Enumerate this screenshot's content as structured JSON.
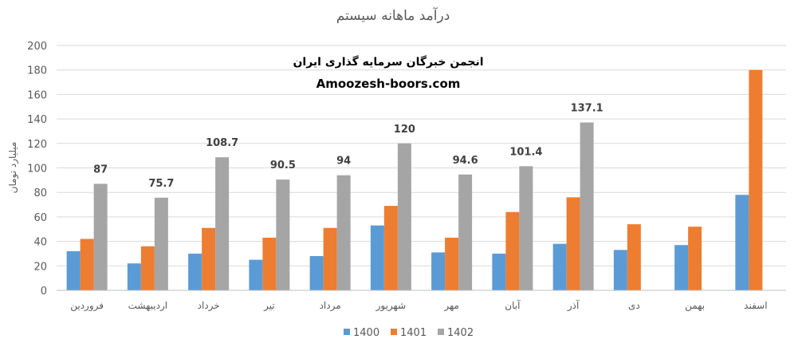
{
  "chart_data": {
    "type": "bar",
    "title": "درآمد ماهانه سیستم",
    "ylabel": "میلیارد تومان",
    "xlabel": "",
    "ylim": [
      0,
      200
    ],
    "ytick_step": 20,
    "yticks": [
      "0",
      "20",
      "40",
      "60",
      "80",
      "100",
      "120",
      "140",
      "160",
      "180",
      "200"
    ],
    "grid": true,
    "legend_position": "bottom",
    "categories": [
      "فروردین",
      "اردیبهشت",
      "خرداد",
      "تیر",
      "مرداد",
      "شهریور",
      "مهر",
      "آبان",
      "آذر",
      "دی",
      "بهمن",
      "اسفند"
    ],
    "series": [
      {
        "name": "1400",
        "color": "#5B9BD5",
        "values": [
          32,
          22,
          30,
          25,
          28,
          53,
          31,
          30,
          38,
          33,
          37,
          78
        ]
      },
      {
        "name": "1401",
        "color": "#ED7D31",
        "values": [
          42,
          36,
          51,
          43,
          51,
          69,
          43,
          64,
          76,
          54,
          52,
          180
        ]
      },
      {
        "name": "1402",
        "color": "#A5A5A5",
        "values": [
          87,
          75.7,
          108.7,
          90.5,
          94,
          120,
          94.6,
          101.4,
          137.1,
          null,
          null,
          null
        ]
      }
    ],
    "data_labels": {
      "series": "1402",
      "texts": [
        "87",
        "75.7",
        "108.7",
        "90.5",
        "94",
        "120",
        "94.6",
        "101.4",
        "137.1"
      ]
    }
  },
  "watermark": {
    "line1": "انجمن خبرگان سرمایه گذاری ایران",
    "line2": "Amoozesh-boors.com"
  }
}
